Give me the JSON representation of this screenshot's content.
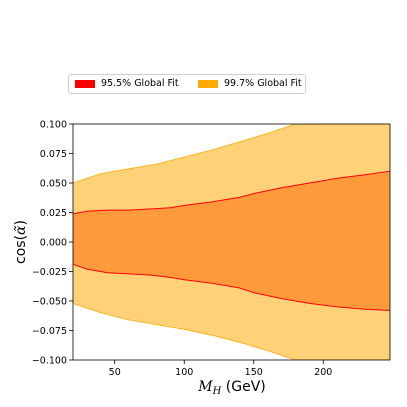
{
  "chart_data": {
    "type": "area",
    "title": "",
    "xlabel": "M_H (GeV)",
    "ylabel": "cos(α̃)",
    "xlim": [
      20,
      248
    ],
    "ylim": [
      -0.1,
      0.1
    ],
    "xticks": [
      50,
      100,
      150,
      200
    ],
    "xtick_labels": [
      "50",
      "100",
      "150",
      "200"
    ],
    "yticks": [
      -0.1,
      -0.075,
      -0.05,
      -0.025,
      0.0,
      0.025,
      0.05,
      0.075,
      0.1
    ],
    "ytick_labels": [
      "−0.100",
      "−0.075",
      "−0.050",
      "−0.025",
      "0.000",
      "0.025",
      "0.050",
      "0.075",
      "0.100"
    ],
    "grid": false,
    "legend_position": "top",
    "series": [
      {
        "name": "95.5% Global Fit",
        "color": "#ff0000",
        "fill": "#ff9a3c",
        "x": [
          20,
          30,
          45,
          60,
          75,
          90,
          100,
          120,
          140,
          150,
          170,
          190,
          210,
          230,
          248
        ],
        "upper": [
          0.024,
          0.026,
          0.027,
          0.027,
          0.028,
          0.029,
          0.031,
          0.034,
          0.038,
          0.041,
          0.046,
          0.05,
          0.054,
          0.057,
          0.06
        ],
        "lower": [
          -0.019,
          -0.023,
          -0.026,
          -0.027,
          -0.028,
          -0.03,
          -0.032,
          -0.035,
          -0.039,
          -0.043,
          -0.048,
          -0.052,
          -0.055,
          -0.057,
          -0.058
        ]
      },
      {
        "name": "99.7% Global Fit",
        "color": "#ffaa00",
        "fill": "#ffd27a",
        "x": [
          20,
          40,
          60,
          80,
          100,
          120,
          140,
          160,
          180,
          200,
          220,
          248
        ],
        "upper": [
          0.05,
          0.058,
          0.062,
          0.066,
          0.072,
          0.078,
          0.085,
          0.092,
          0.1,
          0.1,
          0.1,
          0.1
        ],
        "lower": [
          -0.052,
          -0.06,
          -0.066,
          -0.07,
          -0.074,
          -0.079,
          -0.085,
          -0.092,
          -0.1,
          -0.1,
          -0.1,
          -0.1
        ]
      }
    ]
  }
}
